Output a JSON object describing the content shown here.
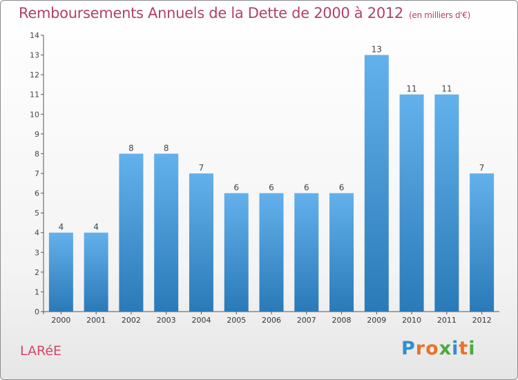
{
  "header": {
    "title": "Remboursements Annuels de la Dette de 2000 à 2012",
    "unit": "(en milliers d'€)"
  },
  "footer": {
    "commune": "LARéE",
    "brand": "Proxiti"
  },
  "colors": {
    "title": "#b0406a",
    "bar_top": "#63b1ec",
    "bar_bottom": "#2a7ab8",
    "axis": "#555555"
  },
  "chart_data": {
    "type": "bar",
    "categories": [
      "2000",
      "2001",
      "2002",
      "2003",
      "2004",
      "2005",
      "2006",
      "2007",
      "2008",
      "2009",
      "2010",
      "2011",
      "2012"
    ],
    "values": [
      4,
      4,
      8,
      8,
      7,
      6,
      6,
      6,
      6,
      13,
      11,
      11,
      7
    ],
    "data_labels": [
      "4",
      "4",
      "8",
      "8",
      "7",
      "6",
      "6",
      "6",
      "6",
      "13",
      "11",
      "11",
      "7"
    ],
    "yticks": [
      "0",
      "1",
      "2",
      "3",
      "4",
      "5",
      "6",
      "7",
      "8",
      "9",
      "10",
      "11",
      "12",
      "13",
      "14"
    ],
    "ylim": [
      0,
      14
    ],
    "grid": false,
    "legend": "none"
  }
}
